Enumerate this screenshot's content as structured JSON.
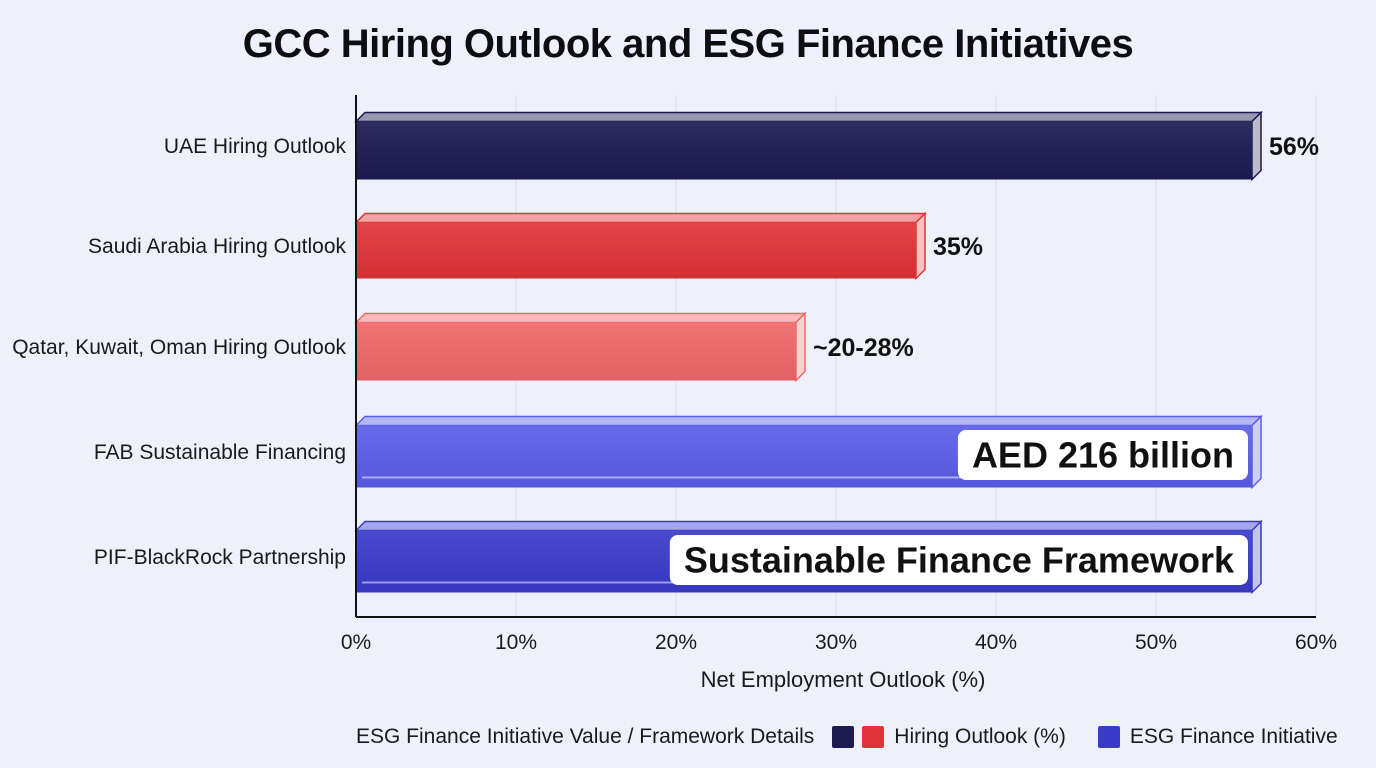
{
  "chart_data": {
    "type": "bar",
    "orientation": "horizontal",
    "title": "GCC Hiring Outlook and ESG Finance Initiatives",
    "xlabel": "Net Employment Outlook (%)",
    "ylabel": "",
    "xlim": [
      0,
      60
    ],
    "x_ticks": [
      "0%",
      "10%",
      "20%",
      "30%",
      "40%",
      "50%",
      "60%"
    ],
    "grid": true,
    "categories": [
      "UAE Hiring Outlook",
      "Saudi Arabia Hiring Outlook",
      "Qatar, Kuwait, Oman Hiring Outlook",
      "FAB Sustainable Financing",
      "PIF-BlackRock Partnership"
    ],
    "bars": [
      {
        "category": "UAE Hiring Outlook",
        "value": 56,
        "label": "56%",
        "label_position": "outside",
        "color": "#1b1b52"
      },
      {
        "category": "Saudi Arabia Hiring Outlook",
        "value": 35,
        "label": "35%",
        "label_position": "outside",
        "color": "#e03538"
      },
      {
        "category": "Qatar, Kuwait, Oman Hiring Outlook",
        "value": 27.5,
        "label": "~20-28%",
        "label_position": "outside",
        "color": "#f0696a"
      },
      {
        "category": "FAB Sustainable Financing",
        "value": 56,
        "label": "AED 216 billion",
        "label_position": "inside",
        "color": "#5b5fe8"
      },
      {
        "category": "PIF-BlackRock Partnership",
        "value": 56,
        "label": "Sustainable Finance Framework",
        "label_position": "inside",
        "color": "#3a3bcb"
      }
    ],
    "legend": {
      "position": "bottom",
      "title": "ESG Finance Initiative Value / Framework Details",
      "entries": [
        {
          "label": "Hiring Outlook (%)",
          "colors": [
            "#1b1b52",
            "#e03538"
          ]
        },
        {
          "label": "ESG Finance Initiative",
          "colors": [
            "#3a3bcb"
          ]
        }
      ]
    }
  }
}
